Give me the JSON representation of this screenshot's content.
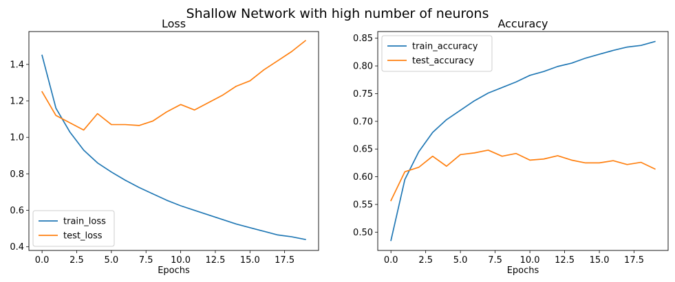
{
  "figure": {
    "suptitle": "Shallow Network with high number of neurons",
    "series_colors": {
      "train": "#1f77b4",
      "test": "#ff7f0e"
    }
  },
  "chart_data": [
    {
      "type": "line",
      "title": "Loss",
      "xlabel": "Epochs",
      "ylabel": "",
      "xlim": [
        -0.95,
        19.95
      ],
      "ylim": [
        0.38,
        1.58
      ],
      "xticks": [
        0,
        2.5,
        5,
        7.5,
        10,
        12.5,
        15,
        17.5
      ],
      "xtick_labels": [
        "0.0",
        "2.5",
        "5.0",
        "7.5",
        "10.0",
        "12.5",
        "15.0",
        "17.5"
      ],
      "yticks": [
        0.4,
        0.6,
        0.8,
        1.0,
        1.2,
        1.4
      ],
      "ytick_labels": [
        "0.4",
        "0.6",
        "0.8",
        "1.0",
        "1.2",
        "1.4"
      ],
      "grid": false,
      "legend": "lower-left",
      "x": [
        0,
        1,
        2,
        3,
        4,
        5,
        6,
        7,
        8,
        9,
        10,
        11,
        12,
        13,
        14,
        15,
        16,
        17,
        18,
        19
      ],
      "series": [
        {
          "name": "train_loss",
          "color": "#1f77b4",
          "values": [
            1.45,
            1.16,
            1.03,
            0.93,
            0.86,
            0.81,
            0.765,
            0.725,
            0.69,
            0.655,
            0.625,
            0.6,
            0.575,
            0.55,
            0.525,
            0.505,
            0.485,
            0.465,
            0.455,
            0.44
          ]
        },
        {
          "name": "test_loss",
          "color": "#ff7f0e",
          "values": [
            1.25,
            1.12,
            1.08,
            1.04,
            1.13,
            1.07,
            1.07,
            1.065,
            1.09,
            1.14,
            1.18,
            1.15,
            1.19,
            1.23,
            1.28,
            1.31,
            1.37,
            1.42,
            1.47,
            1.53
          ]
        }
      ]
    },
    {
      "type": "line",
      "title": "Accuracy",
      "xlabel": "Epochs",
      "ylabel": "",
      "xlim": [
        -0.95,
        19.95
      ],
      "ylim": [
        0.467,
        0.862
      ],
      "xticks": [
        0,
        2.5,
        5,
        7.5,
        10,
        12.5,
        15,
        17.5
      ],
      "xtick_labels": [
        "0.0",
        "2.5",
        "5.0",
        "7.5",
        "10.0",
        "12.5",
        "15.0",
        "17.5"
      ],
      "yticks": [
        0.5,
        0.55,
        0.6,
        0.65,
        0.7,
        0.75,
        0.8,
        0.85
      ],
      "ytick_labels": [
        "0.50",
        "0.55",
        "0.60",
        "0.65",
        "0.70",
        "0.75",
        "0.80",
        "0.85"
      ],
      "grid": false,
      "legend": "upper-left",
      "x": [
        0,
        1,
        2,
        3,
        4,
        5,
        6,
        7,
        8,
        9,
        10,
        11,
        12,
        13,
        14,
        15,
        16,
        17,
        18,
        19
      ],
      "series": [
        {
          "name": "train_accuracy",
          "color": "#1f77b4",
          "values": [
            0.485,
            0.595,
            0.645,
            0.68,
            0.703,
            0.72,
            0.737,
            0.751,
            0.761,
            0.771,
            0.783,
            0.79,
            0.799,
            0.805,
            0.814,
            0.821,
            0.828,
            0.834,
            0.837,
            0.844
          ]
        },
        {
          "name": "test_accuracy",
          "color": "#ff7f0e",
          "values": [
            0.557,
            0.609,
            0.617,
            0.637,
            0.619,
            0.64,
            0.643,
            0.648,
            0.637,
            0.642,
            0.63,
            0.632,
            0.638,
            0.63,
            0.625,
            0.625,
            0.629,
            0.622,
            0.626,
            0.614
          ]
        }
      ]
    }
  ]
}
